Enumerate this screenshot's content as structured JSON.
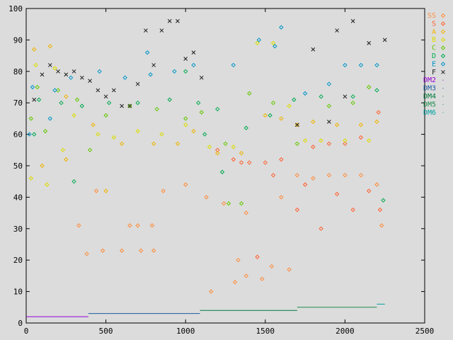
{
  "chart_data": {
    "type": "scatter",
    "title": "",
    "xlabel": "",
    "ylabel": "",
    "xlim": [
      0,
      2500
    ],
    "ylim": [
      0,
      100
    ],
    "grid": false,
    "legend_placement": "right",
    "x_ticks": [
      "0",
      "500",
      "1000",
      "1500",
      "2000",
      "2500"
    ],
    "y_ticks": [
      "0",
      "10",
      "20",
      "30",
      "40",
      "50",
      "60",
      "70",
      "80",
      "90",
      "100"
    ],
    "series": [
      {
        "name": "SS",
        "color": "#ff8c3c",
        "marker": "diamond",
        "points": [
          [
            380,
            22
          ],
          [
            480,
            23
          ],
          [
            600,
            23
          ],
          [
            720,
            23
          ],
          [
            800,
            23
          ],
          [
            650,
            31
          ],
          [
            700,
            31
          ],
          [
            790,
            31
          ],
          [
            330,
            31
          ],
          [
            440,
            42
          ],
          [
            860,
            42
          ],
          [
            1000,
            44
          ],
          [
            1130,
            40
          ],
          [
            1240,
            38
          ],
          [
            1380,
            35
          ],
          [
            1330,
            20
          ],
          [
            1310,
            13
          ],
          [
            1380,
            15
          ],
          [
            1480,
            14
          ],
          [
            1600,
            40
          ],
          [
            1700,
            47
          ],
          [
            1800,
            46
          ],
          [
            1900,
            47
          ],
          [
            2000,
            47
          ],
          [
            2100,
            47
          ],
          [
            2200,
            44
          ],
          [
            2230,
            31
          ],
          [
            1160,
            10
          ],
          [
            1540,
            18
          ],
          [
            1650,
            17
          ]
        ]
      },
      {
        "name": "S",
        "color": "#ff6030",
        "marker": "diamond",
        "points": [
          [
            1350,
            51
          ],
          [
            1400,
            51
          ],
          [
            1500,
            51
          ],
          [
            1600,
            52
          ],
          [
            1800,
            56
          ],
          [
            1900,
            57
          ],
          [
            2000,
            57
          ],
          [
            2100,
            59
          ],
          [
            2210,
            67
          ],
          [
            1200,
            55
          ],
          [
            1300,
            52
          ],
          [
            1450,
            21
          ],
          [
            1700,
            36
          ],
          [
            1850,
            30
          ],
          [
            1950,
            41
          ],
          [
            2050,
            36
          ],
          [
            2150,
            42
          ],
          [
            2220,
            36
          ],
          [
            1750,
            44
          ],
          [
            1550,
            47
          ]
        ]
      },
      {
        "name": "A",
        "color": "#f0b400",
        "marker": "diamond",
        "points": [
          [
            50,
            87
          ],
          [
            150,
            88
          ],
          [
            250,
            72
          ],
          [
            420,
            63
          ],
          [
            600,
            57
          ],
          [
            800,
            57
          ],
          [
            950,
            57
          ],
          [
            1050,
            61
          ],
          [
            1200,
            54
          ],
          [
            1350,
            54
          ],
          [
            1500,
            66
          ],
          [
            1600,
            65
          ],
          [
            1700,
            63
          ],
          [
            1800,
            64
          ],
          [
            1950,
            63
          ],
          [
            2100,
            63
          ],
          [
            2200,
            64
          ],
          [
            100,
            50
          ],
          [
            250,
            52
          ],
          [
            500,
            42
          ]
        ]
      },
      {
        "name": "B",
        "color": "#dcdc00",
        "marker": "diamond",
        "points": [
          [
            60,
            82
          ],
          [
            180,
            81
          ],
          [
            300,
            66
          ],
          [
            450,
            60
          ],
          [
            550,
            59
          ],
          [
            700,
            61
          ],
          [
            850,
            60
          ],
          [
            1000,
            63
          ],
          [
            1150,
            56
          ],
          [
            1300,
            56
          ],
          [
            1450,
            89
          ],
          [
            1550,
            89
          ],
          [
            1650,
            69
          ],
          [
            1750,
            58
          ],
          [
            1850,
            58
          ],
          [
            2000,
            58
          ],
          [
            2150,
            58
          ],
          [
            30,
            46
          ],
          [
            230,
            55
          ],
          [
            130,
            44
          ]
        ]
      },
      {
        "name": "C",
        "color": "#64c800",
        "marker": "diamond",
        "points": [
          [
            70,
            75
          ],
          [
            200,
            74
          ],
          [
            320,
            71
          ],
          [
            500,
            66
          ],
          [
            650,
            69
          ],
          [
            820,
            68
          ],
          [
            1000,
            65
          ],
          [
            1100,
            67
          ],
          [
            1250,
            57
          ],
          [
            1400,
            73
          ],
          [
            1550,
            70
          ],
          [
            1700,
            57
          ],
          [
            1900,
            69
          ],
          [
            2050,
            70
          ],
          [
            2150,
            75
          ],
          [
            30,
            65
          ],
          [
            120,
            61
          ],
          [
            400,
            55
          ],
          [
            1270,
            38
          ],
          [
            1350,
            38
          ]
        ]
      },
      {
        "name": "D",
        "color": "#00aa50",
        "marker": "diamond",
        "points": [
          [
            80,
            71
          ],
          [
            220,
            70
          ],
          [
            350,
            69
          ],
          [
            520,
            70
          ],
          [
            700,
            70
          ],
          [
            900,
            71
          ],
          [
            1080,
            70
          ],
          [
            1200,
            68
          ],
          [
            1380,
            62
          ],
          [
            1530,
            66
          ],
          [
            1680,
            71
          ],
          [
            1850,
            72
          ],
          [
            2050,
            72
          ],
          [
            2200,
            74
          ],
          [
            50,
            60
          ],
          [
            300,
            45
          ],
          [
            1000,
            80
          ],
          [
            1230,
            48
          ],
          [
            2240,
            39
          ],
          [
            1120,
            60
          ]
        ]
      },
      {
        "name": "E",
        "color": "#0096c8",
        "marker": "diamond",
        "points": [
          [
            40,
            75
          ],
          [
            180,
            74
          ],
          [
            280,
            78
          ],
          [
            460,
            80
          ],
          [
            620,
            78
          ],
          [
            780,
            79
          ],
          [
            930,
            80
          ],
          [
            1050,
            82
          ],
          [
            1300,
            82
          ],
          [
            1460,
            90
          ],
          [
            1560,
            88
          ],
          [
            1600,
            94
          ],
          [
            1750,
            73
          ],
          [
            1900,
            76
          ],
          [
            2000,
            82
          ],
          [
            2100,
            82
          ],
          [
            2200,
            82
          ],
          [
            20,
            60
          ],
          [
            150,
            65
          ],
          [
            760,
            86
          ]
        ]
      },
      {
        "name": "F",
        "color": "#1c1c1c",
        "marker": "x",
        "points": [
          [
            50,
            71
          ],
          [
            100,
            79
          ],
          [
            150,
            82
          ],
          [
            200,
            80
          ],
          [
            250,
            79
          ],
          [
            300,
            80
          ],
          [
            350,
            78
          ],
          [
            400,
            77
          ],
          [
            450,
            74
          ],
          [
            500,
            72
          ],
          [
            550,
            74
          ],
          [
            600,
            69
          ],
          [
            650,
            69
          ],
          [
            700,
            76
          ],
          [
            750,
            93
          ],
          [
            800,
            82
          ],
          [
            850,
            93
          ],
          [
            900,
            96
          ],
          [
            950,
            96
          ],
          [
            1000,
            84
          ],
          [
            1050,
            86
          ],
          [
            1100,
            78
          ],
          [
            1900,
            64
          ],
          [
            1950,
            93
          ],
          [
            2050,
            96
          ],
          [
            2150,
            89
          ],
          [
            2250,
            90
          ],
          [
            1700,
            63
          ],
          [
            1800,
            87
          ],
          [
            2000,
            72
          ]
        ]
      },
      {
        "name": "DM2",
        "color": "#9400d3",
        "marker": "line",
        "points": [
          [
            0,
            2
          ],
          [
            390,
            2
          ]
        ]
      },
      {
        "name": "DM3",
        "color": "#1e5aa0",
        "marker": "line",
        "points": [
          [
            390,
            3
          ],
          [
            1090,
            3
          ]
        ]
      },
      {
        "name": "DM4",
        "color": "#00783c",
        "marker": "line",
        "points": [
          [
            1090,
            4
          ],
          [
            1700,
            4
          ]
        ]
      },
      {
        "name": "DM5",
        "color": "#1c8c4c",
        "marker": "line",
        "points": [
          [
            1700,
            5
          ],
          [
            2200,
            5
          ]
        ]
      },
      {
        "name": "DM6",
        "color": "#00a0a0",
        "marker": "line",
        "points": [
          [
            2200,
            6
          ],
          [
            2250,
            6
          ]
        ]
      }
    ]
  }
}
